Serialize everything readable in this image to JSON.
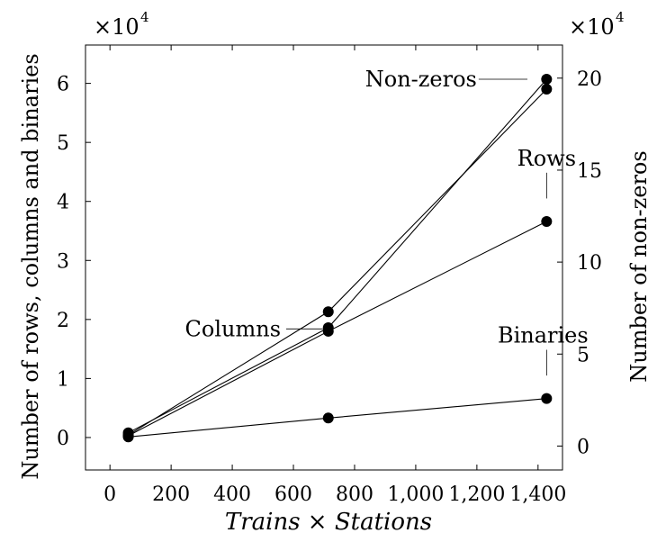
{
  "chart_data": {
    "type": "line",
    "xlabel": "Trains × Stations",
    "ylabel_left": "Number of rows, columns and binaries",
    "ylabel_right": "Number of non-zeros",
    "left_multiplier": "×10",
    "left_multiplier_exp": "4",
    "right_multiplier": "×10",
    "right_multiplier_exp": "4",
    "xlim": [
      -80,
      1480
    ],
    "ylim_left": [
      -5500,
      66500
    ],
    "ylim_right": [
      -13000,
      218000
    ],
    "x_ticks": [
      0,
      200,
      400,
      600,
      800,
      1000,
      1200,
      1400
    ],
    "x_tick_labels": [
      "0",
      "200",
      "400",
      "600",
      "800",
      "1,000",
      "1,200",
      "1,400"
    ],
    "y_left_ticks": [
      0,
      10000,
      20000,
      30000,
      40000,
      50000,
      60000
    ],
    "y_left_tick_labels": [
      "0",
      "1",
      "2",
      "3",
      "4",
      "5",
      "6"
    ],
    "y_right_ticks": [
      0,
      50000,
      100000,
      150000,
      200000
    ],
    "y_right_tick_labels": [
      "0",
      "5",
      "10",
      "15",
      "20"
    ],
    "grid": false,
    "series": [
      {
        "name": "Non-zeros",
        "axis": "right",
        "x": [
          60,
          714,
          1428
        ],
        "y": [
          6000,
          73000,
          194000
        ],
        "label_pos": [
          1330,
          60700
        ],
        "label_text_pos": [
          1200,
          60700
        ]
      },
      {
        "name": "Rows",
        "axis": "left",
        "x": [
          60,
          714,
          1428
        ],
        "y": [
          300,
          18000,
          36600
        ],
        "label_pos": [
          1428,
          40500
        ],
        "label_text_pos": [
          1428,
          47000
        ]
      },
      {
        "name": "Columns",
        "axis": "left",
        "x": [
          60,
          714,
          1428
        ],
        "y": [
          800,
          18600,
          60700
        ],
        "label_pos": [
          714,
          18400
        ],
        "label_text_pos": [
          600,
          18400
        ]
      },
      {
        "name": "Binaries",
        "axis": "left",
        "x": [
          60,
          714,
          1428
        ],
        "y": [
          100,
          3300,
          6600
        ],
        "label_pos": [
          1428,
          10500
        ],
        "label_text_pos": [
          1428,
          17000
        ]
      }
    ]
  }
}
